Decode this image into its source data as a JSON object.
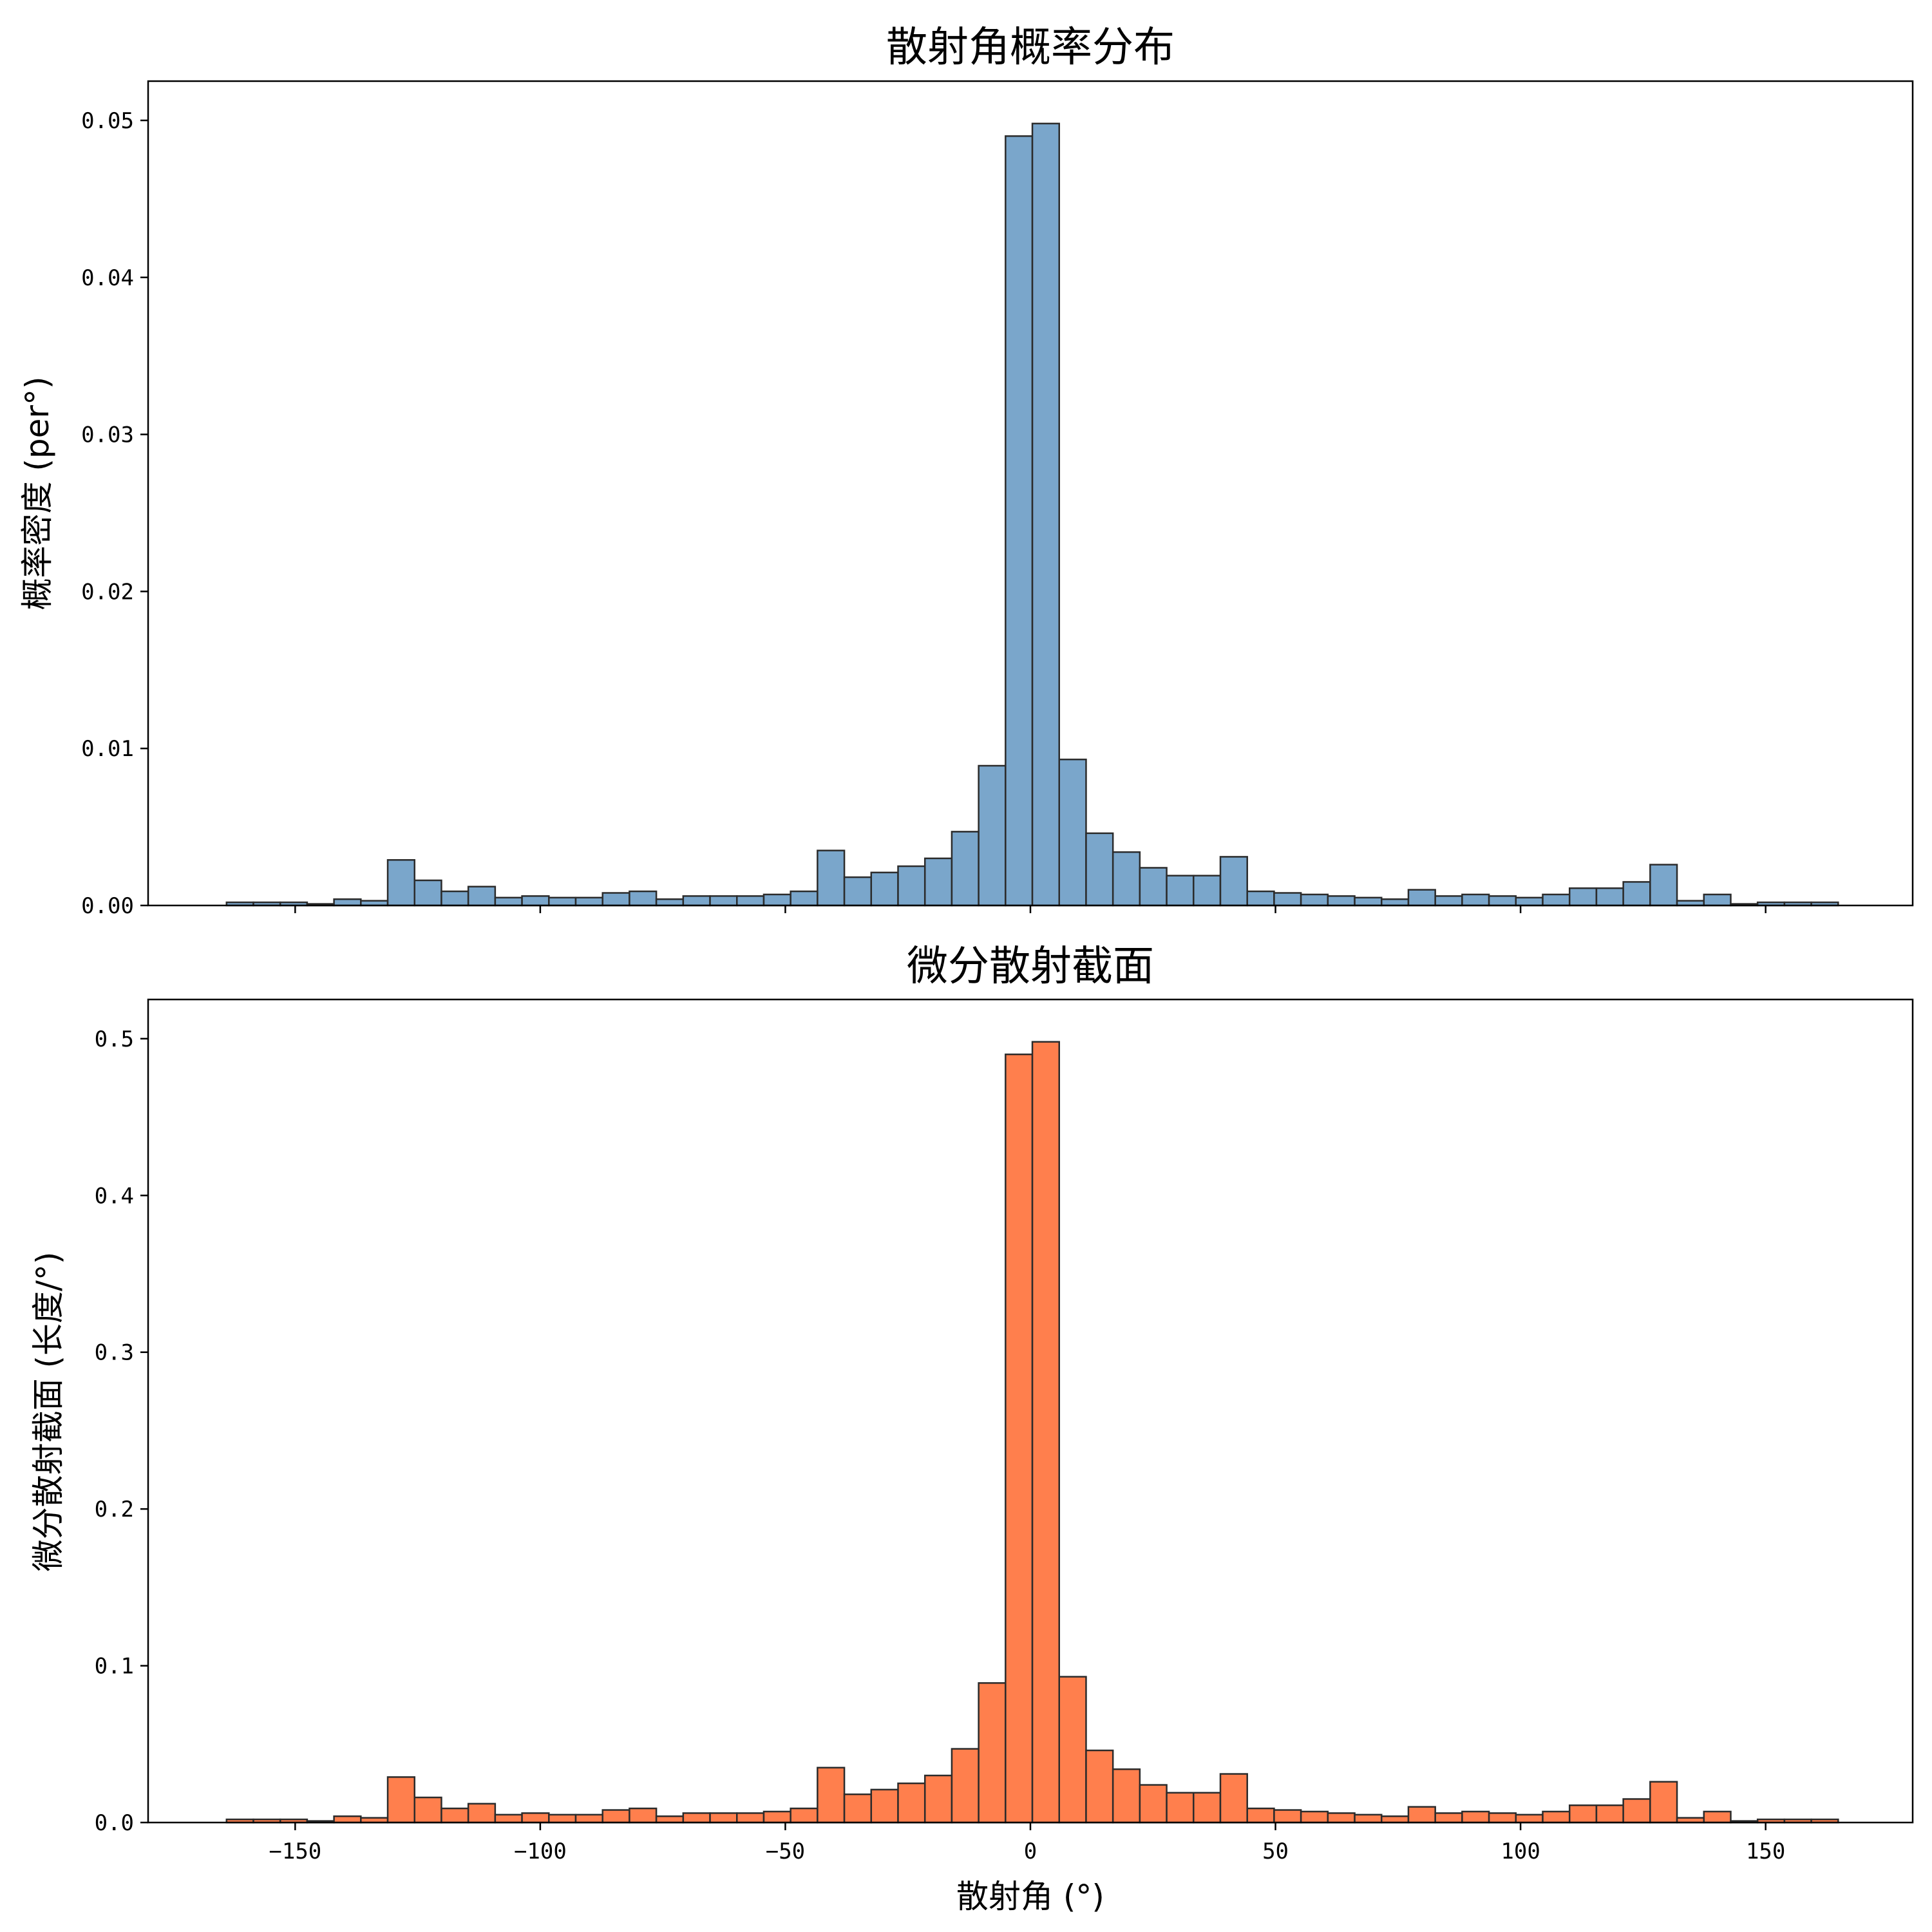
{
  "colors": {
    "top_bars": "#7aa6cb",
    "bottom_bars": "#ff7f4d",
    "edge": "#2b2b2b"
  },
  "chart_data": [
    {
      "type": "bar",
      "title": "散射角概率分布",
      "xlabel": "",
      "ylabel": "概率密度 (per°)",
      "xlim": [
        -180,
        180
      ],
      "ylim": [
        0,
        0.0525
      ],
      "xticks": [
        -150,
        -100,
        -50,
        0,
        50,
        100,
        150
      ],
      "yticks": [
        0.0,
        0.01,
        0.02,
        0.03,
        0.04,
        0.05
      ],
      "ytick_labels": [
        "0.00",
        "0.01",
        "0.02",
        "0.03",
        "0.04",
        "0.05"
      ],
      "bin_start": -164.0,
      "bin_width": 5.48,
      "values": [
        0.0002,
        0.0002,
        0.0002,
        0.0001,
        0.0004,
        0.0003,
        0.0029,
        0.0016,
        0.0009,
        0.0012,
        0.0005,
        0.0006,
        0.0005,
        0.0005,
        0.0008,
        0.0009,
        0.0004,
        0.0006,
        0.0006,
        0.0006,
        0.0007,
        0.0009,
        0.0035,
        0.0018,
        0.0021,
        0.0025,
        0.003,
        0.0047,
        0.0089,
        0.049,
        0.0498,
        0.0093,
        0.0046,
        0.0034,
        0.0024,
        0.0019,
        0.0019,
        0.0031,
        0.0009,
        0.0008,
        0.0007,
        0.0006,
        0.0005,
        0.0004,
        0.001,
        0.0006,
        0.0007,
        0.0006,
        0.0005,
        0.0007,
        0.0011,
        0.0011,
        0.0015,
        0.0026,
        0.0003,
        0.0007,
        0.0001,
        0.0002,
        0.0002,
        0.0002
      ]
    },
    {
      "type": "bar",
      "title": "微分散射截面",
      "xlabel": "散射角 (°)",
      "ylabel": "微分散射截面 (长度/°)",
      "xlim": [
        -180,
        180
      ],
      "ylim": [
        0,
        0.525
      ],
      "xticks": [
        -150,
        -100,
        -50,
        0,
        50,
        100,
        150
      ],
      "xtick_labels": [
        "−150",
        "−100",
        "−50",
        "0",
        "50",
        "100",
        "150"
      ],
      "yticks": [
        0.0,
        0.1,
        0.2,
        0.3,
        0.4,
        0.5
      ],
      "ytick_labels": [
        "0.0",
        "0.1",
        "0.2",
        "0.3",
        "0.4",
        "0.5"
      ],
      "bin_start": -164.0,
      "bin_width": 5.48,
      "values": [
        0.002,
        0.002,
        0.002,
        0.001,
        0.004,
        0.003,
        0.029,
        0.016,
        0.009,
        0.012,
        0.005,
        0.006,
        0.005,
        0.005,
        0.008,
        0.009,
        0.004,
        0.006,
        0.006,
        0.006,
        0.007,
        0.009,
        0.035,
        0.018,
        0.021,
        0.025,
        0.03,
        0.047,
        0.089,
        0.49,
        0.498,
        0.093,
        0.046,
        0.034,
        0.024,
        0.019,
        0.019,
        0.031,
        0.009,
        0.008,
        0.007,
        0.006,
        0.005,
        0.004,
        0.01,
        0.006,
        0.007,
        0.006,
        0.005,
        0.007,
        0.011,
        0.011,
        0.015,
        0.026,
        0.003,
        0.007,
        0.001,
        0.002,
        0.002,
        0.002
      ]
    }
  ]
}
